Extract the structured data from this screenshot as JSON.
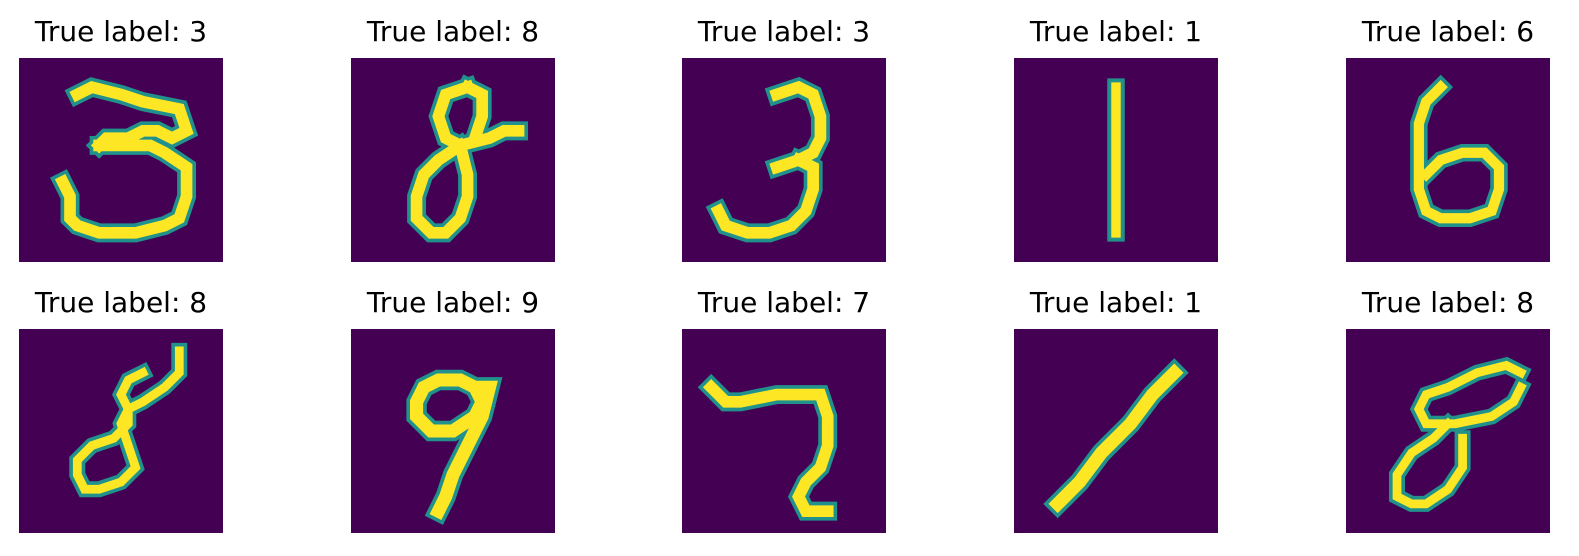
{
  "figure": {
    "colormap": "viridis",
    "background_color": "#440154",
    "stroke_color": "#fde725",
    "edge_color": "#21918c",
    "panels": [
      {
        "title": "True label: 3",
        "digit": 3
      },
      {
        "title": "True label: 8",
        "digit": 8
      },
      {
        "title": "True label: 3",
        "digit": 3
      },
      {
        "title": "True label: 1",
        "digit": 1
      },
      {
        "title": "True label: 6",
        "digit": 6
      },
      {
        "title": "True label: 8",
        "digit": 8
      },
      {
        "title": "True label: 9",
        "digit": 9
      },
      {
        "title": "True label: 7",
        "digit": 7
      },
      {
        "title": "True label: 1",
        "digit": 1
      },
      {
        "title": "True label: 8",
        "digit": 8
      }
    ]
  }
}
